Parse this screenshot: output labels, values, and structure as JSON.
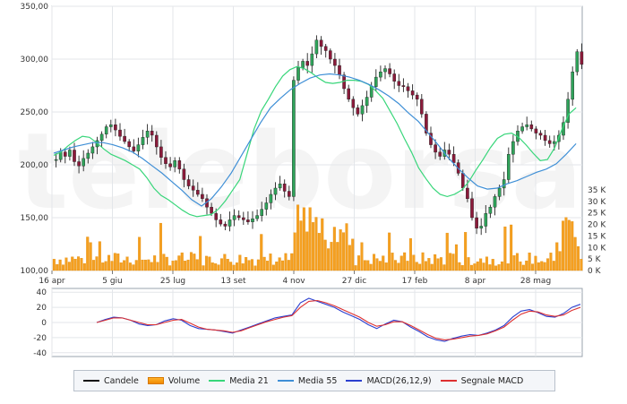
{
  "chart_data": [
    {
      "type": "candlestick",
      "title": "",
      "xlabel": "",
      "ylabel": "",
      "ylim": [
        100,
        350
      ],
      "y_ticks": [
        "350,00",
        "300,00",
        "250,00",
        "200,00",
        "150,00",
        "100,00"
      ],
      "x_ticks": [
        "16 apr",
        "5 giu",
        "25 lug",
        "13 set",
        "4 nov",
        "27 dic",
        "17 feb",
        "8 apr",
        "28 mag"
      ],
      "watermark": "teleborsa",
      "series": [
        {
          "name": "Candele",
          "color": "#000000",
          "values": [
            205,
            212,
            208,
            214,
            203,
            199,
            206,
            211,
            217,
            223,
            229,
            236,
            238,
            233,
            227,
            222,
            217,
            213,
            219,
            226,
            232,
            228,
            217,
            207,
            201,
            198,
            204,
            196,
            186,
            180,
            176,
            172,
            168,
            160,
            154,
            148,
            144,
            142,
            148,
            152,
            150,
            148,
            146,
            149,
            152,
            158,
            164,
            172,
            178,
            182,
            175,
            170,
            280,
            292,
            298,
            294,
            305,
            318,
            312,
            308,
            300,
            294,
            285,
            272,
            262,
            254,
            248,
            256,
            264,
            274,
            283,
            288,
            291,
            286,
            279,
            275,
            274,
            270,
            266,
            262,
            248,
            230,
            219,
            212,
            208,
            214,
            210,
            202,
            192,
            178,
            168,
            150,
            140,
            142,
            154,
            160,
            170,
            178,
            186,
            210,
            222,
            232,
            236,
            238,
            234,
            230,
            228,
            223,
            220,
            222,
            228,
            240,
            262,
            288,
            307,
            295
          ]
        },
        {
          "name": "Media 21",
          "color": "#38d67a",
          "values": [
            209,
            212,
            218,
            223,
            227,
            226,
            221,
            215,
            210,
            207,
            204,
            200,
            196,
            188,
            178,
            171,
            167,
            162,
            157,
            153,
            151,
            152,
            153,
            158,
            166,
            176,
            186,
            210,
            234,
            251,
            262,
            274,
            284,
            290,
            293,
            291,
            287,
            282,
            278,
            277,
            278,
            280,
            280,
            279,
            276,
            270,
            263,
            251,
            239,
            225,
            212,
            197,
            187,
            178,
            172,
            170,
            172,
            176,
            184,
            195,
            205,
            216,
            225,
            229,
            230,
            226,
            219,
            211,
            204,
            205,
            216,
            233,
            248,
            254
          ]
        },
        {
          "name": "Media 55",
          "color": "#3f8fd6",
          "values": [
            211,
            214,
            217,
            219,
            221,
            221,
            219,
            216,
            212,
            206,
            199,
            192,
            184,
            176,
            167,
            161,
            168,
            179,
            192,
            208,
            224,
            240,
            254,
            263,
            271,
            277,
            282,
            285,
            286,
            285,
            283,
            280,
            276,
            271,
            265,
            258,
            249,
            241,
            230,
            219,
            207,
            197,
            188,
            180,
            177,
            178,
            182,
            185,
            189,
            193,
            196,
            201,
            210,
            220
          ]
        }
      ]
    },
    {
      "type": "bar",
      "name": "Volume",
      "color": "#f59a0f",
      "y_ticks": [
        "35 K",
        "30 K",
        "25 K",
        "20 K",
        "15 K",
        "10 K",
        "5 K",
        "0 K"
      ],
      "ylim": [
        0,
        35
      ],
      "unit": "K"
    },
    {
      "type": "line",
      "ylim": [
        -45,
        45
      ],
      "y_ticks": [
        "40",
        "20",
        "0",
        "-20",
        "-40"
      ],
      "series": [
        {
          "name": "MACD(26,12,9)",
          "color": "#2b3fcf",
          "values": [
            0,
            4,
            7,
            6,
            3,
            -2,
            -4,
            -3,
            2,
            5,
            3,
            -4,
            -8,
            -9,
            -10,
            -12,
            -14,
            -10,
            -6,
            -2,
            2,
            6,
            8,
            10,
            26,
            32,
            28,
            24,
            20,
            14,
            9,
            4,
            -3,
            -8,
            -2,
            3,
            1,
            -6,
            -12,
            -19,
            -23,
            -25,
            -21,
            -18,
            -16,
            -17,
            -14,
            -10,
            -4,
            7,
            15,
            17,
            13,
            8,
            7,
            12,
            20,
            24
          ]
        },
        {
          "name": "Segnale MACD",
          "color": "#dd3030",
          "values": [
            0,
            3,
            6,
            6,
            3,
            0,
            -3,
            -3,
            0,
            3,
            4,
            -1,
            -6,
            -9,
            -10,
            -11,
            -13,
            -11,
            -7,
            -3,
            1,
            4,
            7,
            9,
            20,
            28,
            29,
            26,
            22,
            17,
            12,
            7,
            0,
            -5,
            -3,
            1,
            1,
            -4,
            -10,
            -16,
            -21,
            -23,
            -22,
            -20,
            -18,
            -17,
            -15,
            -11,
            -6,
            3,
            11,
            15,
            14,
            10,
            8,
            10,
            16,
            20
          ]
        }
      ]
    }
  ],
  "legend": [
    {
      "label": "Candele",
      "swatch": "line",
      "color": "#111111"
    },
    {
      "label": "Volume",
      "swatch": "box",
      "color": "#f59a0f"
    },
    {
      "label": "Media 21",
      "swatch": "line",
      "color": "#38d67a"
    },
    {
      "label": "Media 55",
      "swatch": "line",
      "color": "#3f8fd6"
    },
    {
      "label": "MACD(26,12,9)",
      "swatch": "line",
      "color": "#2b3fcf"
    },
    {
      "label": "Segnale MACD",
      "swatch": "line",
      "color": "#dd3030"
    }
  ]
}
